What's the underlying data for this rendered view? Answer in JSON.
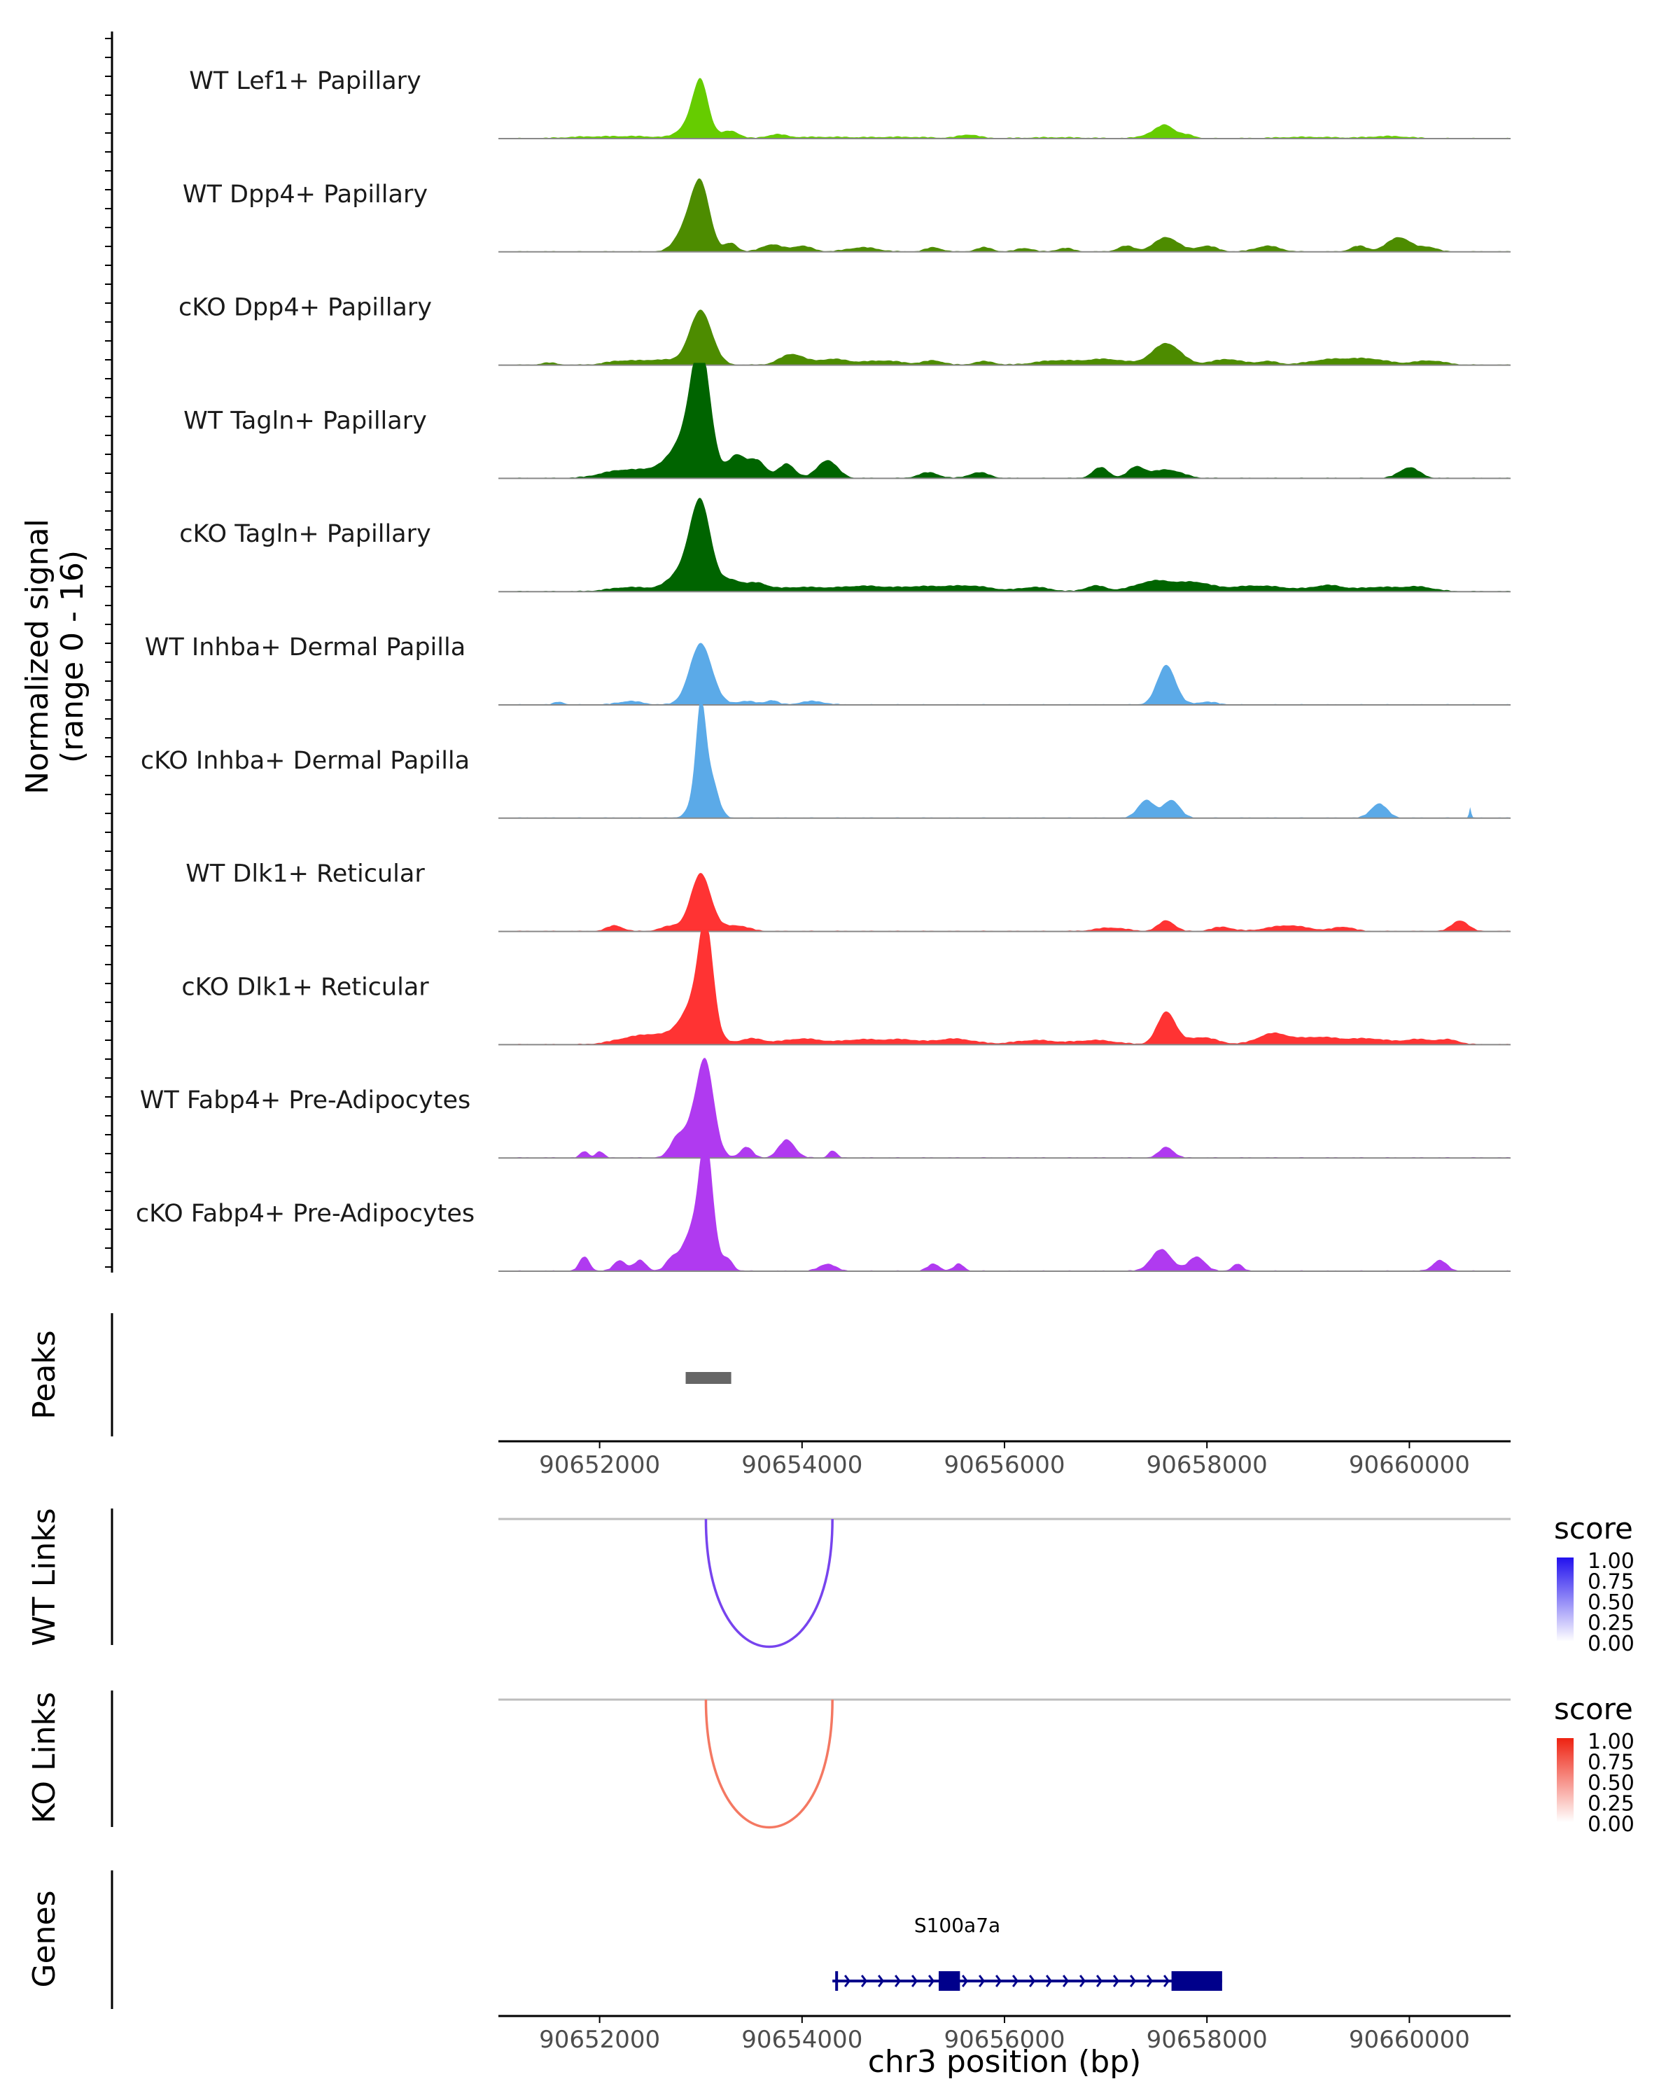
{
  "chart_data": {
    "type": "area",
    "title": "",
    "xlabel": "chr3 position (bp)",
    "ylabel_line1": "Normalized signal",
    "ylabel_line2": "(range 0 - 16)",
    "xlim": [
      90651000,
      90661000
    ],
    "ylim": [
      0,
      16
    ],
    "x_ticks": [
      90652000,
      90654000,
      90656000,
      90658000,
      90660000
    ],
    "x_tick_labels": [
      "90652000",
      "90654000",
      "90656000",
      "90658000",
      "90660000"
    ],
    "tracks": [
      {
        "name": "WT Lef1+ Papillary",
        "color": "#66CC00",
        "peaks": [
          [
            90651800,
            0.15,
            200
          ],
          [
            90652300,
            0.3,
            300
          ],
          [
            90653000,
            5.5,
            70
          ],
          [
            90652950,
            3.0,
            120
          ],
          [
            90653300,
            1.0,
            80
          ],
          [
            90653750,
            0.5,
            100
          ],
          [
            90654200,
            0.2,
            300
          ],
          [
            90655000,
            0.2,
            300
          ],
          [
            90655650,
            0.5,
            100
          ],
          [
            90656500,
            0.15,
            300
          ],
          [
            90657500,
            0.8,
            120
          ],
          [
            90657600,
            1.3,
            80
          ],
          [
            90657800,
            0.5,
            80
          ],
          [
            90659000,
            0.2,
            300
          ],
          [
            90659800,
            0.3,
            200
          ]
        ]
      },
      {
        "name": "WT Dpp4+ Papillary",
        "color": "#4D8C00",
        "peaks": [
          [
            90653000,
            9.0,
            90
          ],
          [
            90652850,
            3.0,
            100
          ],
          [
            90653300,
            1.2,
            60
          ],
          [
            90653700,
            1.0,
            100
          ],
          [
            90654000,
            0.8,
            100
          ],
          [
            90654600,
            0.6,
            150
          ],
          [
            90655300,
            0.6,
            80
          ],
          [
            90655800,
            0.6,
            80
          ],
          [
            90656200,
            0.5,
            80
          ],
          [
            90656600,
            0.5,
            80
          ],
          [
            90657200,
            0.8,
            80
          ],
          [
            90657600,
            2.0,
            120
          ],
          [
            90658000,
            0.8,
            100
          ],
          [
            90658600,
            0.8,
            120
          ],
          [
            90659500,
            0.8,
            80
          ],
          [
            90659900,
            2.0,
            120
          ],
          [
            90660200,
            0.6,
            80
          ]
        ]
      },
      {
        "name": "cKO Dpp4+ Papillary",
        "color": "#4D8C00",
        "peaks": [
          [
            90653000,
            7.5,
            110
          ],
          [
            90652600,
            0.7,
            200
          ],
          [
            90652200,
            0.5,
            150
          ],
          [
            90651500,
            0.3,
            80
          ],
          [
            90653900,
            1.5,
            120
          ],
          [
            90654300,
            0.8,
            150
          ],
          [
            90654800,
            0.6,
            200
          ],
          [
            90655300,
            0.6,
            100
          ],
          [
            90655800,
            0.5,
            100
          ],
          [
            90656500,
            0.6,
            200
          ],
          [
            90657000,
            0.8,
            200
          ],
          [
            90657600,
            3.0,
            140
          ],
          [
            90658200,
            0.8,
            150
          ],
          [
            90658600,
            0.5,
            100
          ],
          [
            90659200,
            0.7,
            200
          ],
          [
            90659600,
            0.8,
            200
          ],
          [
            90660200,
            0.6,
            150
          ]
        ]
      },
      {
        "name": "WT Tagln+ Papillary",
        "color": "#006400",
        "peaks": [
          [
            90653000,
            14.0,
            90
          ],
          [
            90652900,
            6.0,
            160
          ],
          [
            90653350,
            3.0,
            80
          ],
          [
            90653550,
            2.5,
            90
          ],
          [
            90653850,
            2.0,
            80
          ],
          [
            90654250,
            2.5,
            100
          ],
          [
            90652200,
            1.0,
            200
          ],
          [
            90652600,
            1.0,
            200
          ],
          [
            90655250,
            0.8,
            100
          ],
          [
            90655750,
            0.8,
            100
          ],
          [
            90656950,
            1.5,
            80
          ],
          [
            90657300,
            1.5,
            80
          ],
          [
            90657600,
            1.2,
            150
          ],
          [
            90660000,
            1.5,
            100
          ]
        ]
      },
      {
        "name": "cKO Tagln+ Papillary",
        "color": "#006400",
        "peaks": [
          [
            90653000,
            11.0,
            100
          ],
          [
            90652850,
            3.0,
            150
          ],
          [
            90653300,
            1.5,
            100
          ],
          [
            90653550,
            1.0,
            100
          ],
          [
            90652300,
            0.6,
            200
          ],
          [
            90654000,
            0.6,
            300
          ],
          [
            90654600,
            0.6,
            200
          ],
          [
            90655200,
            0.7,
            300
          ],
          [
            90655700,
            0.6,
            200
          ],
          [
            90656300,
            0.6,
            150
          ],
          [
            90656900,
            0.8,
            100
          ],
          [
            90657500,
            1.5,
            200
          ],
          [
            90657900,
            1.0,
            150
          ],
          [
            90658500,
            0.8,
            300
          ],
          [
            90659200,
            0.8,
            150
          ],
          [
            90659700,
            0.6,
            200
          ],
          [
            90660100,
            0.6,
            150
          ]
        ]
      },
      {
        "name": "WT Inhba+ Dermal Papilla",
        "color": "#5BAAE8",
        "peaks": [
          [
            90653000,
            8.5,
            110
          ],
          [
            90651600,
            0.4,
            50
          ],
          [
            90652300,
            0.5,
            120
          ],
          [
            90653450,
            0.5,
            100
          ],
          [
            90653700,
            0.6,
            60
          ],
          [
            90654100,
            0.5,
            120
          ],
          [
            90657600,
            5.5,
            90
          ],
          [
            90658000,
            0.4,
            100
          ]
        ]
      },
      {
        "name": "cKO Inhba+ Dermal Papilla",
        "color": "#5BAAE8",
        "peaks": [
          [
            90653000,
            11.0,
            45
          ],
          [
            90653100,
            5.0,
            70
          ],
          [
            90652980,
            4.0,
            80
          ],
          [
            90657400,
            2.5,
            80
          ],
          [
            90657650,
            2.5,
            80
          ],
          [
            90659700,
            2.0,
            80
          ],
          [
            90660600,
            1.5,
            10
          ]
        ]
      },
      {
        "name": "WT Dlk1+ Reticular",
        "color": "#FF3333",
        "peaks": [
          [
            90653000,
            8.0,
            100
          ],
          [
            90652150,
            0.8,
            80
          ],
          [
            90652700,
            0.7,
            100
          ],
          [
            90653350,
            0.8,
            120
          ],
          [
            90657050,
            0.5,
            150
          ],
          [
            90657600,
            1.5,
            80
          ],
          [
            90658150,
            0.6,
            100
          ],
          [
            90658800,
            0.8,
            200
          ],
          [
            90659350,
            0.6,
            100
          ],
          [
            90660500,
            1.5,
            80
          ]
        ]
      },
      {
        "name": "cKO Dlk1+ Reticular",
        "color": "#FF3333",
        "peaks": [
          [
            90653050,
            13.0,
            70
          ],
          [
            90652950,
            6.0,
            140
          ],
          [
            90652350,
            1.0,
            200
          ],
          [
            90652600,
            0.8,
            150
          ],
          [
            90653500,
            0.8,
            120
          ],
          [
            90654000,
            0.8,
            200
          ],
          [
            90654600,
            0.7,
            200
          ],
          [
            90655000,
            0.6,
            150
          ],
          [
            90655500,
            0.8,
            200
          ],
          [
            90656300,
            0.6,
            200
          ],
          [
            90656900,
            0.6,
            200
          ],
          [
            90657600,
            4.5,
            90
          ],
          [
            90657950,
            1.0,
            150
          ],
          [
            90658650,
            1.5,
            150
          ],
          [
            90659100,
            1.0,
            200
          ],
          [
            90659600,
            0.8,
            200
          ],
          [
            90660100,
            0.7,
            150
          ],
          [
            90660400,
            0.6,
            100
          ]
        ]
      },
      {
        "name": "WT Fabp4+ Pre-Adipocytes",
        "color": "#B03AF0",
        "peaks": [
          [
            90651850,
            0.9,
            40
          ],
          [
            90652000,
            0.9,
            40
          ],
          [
            90652750,
            1.5,
            60
          ],
          [
            90653050,
            10.0,
            80
          ],
          [
            90652950,
            5.0,
            130
          ],
          [
            90653450,
            1.5,
            60
          ],
          [
            90653850,
            2.5,
            80
          ],
          [
            90654300,
            1.0,
            40
          ],
          [
            90657600,
            1.5,
            70
          ]
        ]
      },
      {
        "name": "cKO Fabp4+ Pre-Adipocytes",
        "color": "#B03AF0",
        "peaks": [
          [
            90651850,
            2.0,
            50
          ],
          [
            90652200,
            1.5,
            60
          ],
          [
            90652400,
            1.5,
            60
          ],
          [
            90652700,
            1.0,
            50
          ],
          [
            90653050,
            13.0,
            60
          ],
          [
            90652980,
            7.0,
            140
          ],
          [
            90653280,
            1.0,
            40
          ],
          [
            90654250,
            1.0,
            80
          ],
          [
            90655300,
            1.0,
            60
          ],
          [
            90655550,
            1.0,
            50
          ],
          [
            90657550,
            3.0,
            100
          ],
          [
            90657900,
            2.0,
            80
          ],
          [
            90658300,
            1.0,
            50
          ],
          [
            90660300,
            1.5,
            70
          ]
        ]
      }
    ],
    "peaks_track": {
      "label": "Peaks",
      "regions": [
        [
          90652850,
          90653300
        ]
      ],
      "color": "#666666"
    },
    "links": [
      {
        "label": "WT Links",
        "start": 90653050,
        "end": 90654300,
        "score": 0.75,
        "legend_title": "score",
        "color": "#7744EE",
        "scale_high": "#2211EE"
      },
      {
        "label": "KO Links",
        "start": 90653050,
        "end": 90654300,
        "score": 0.6,
        "legend_title": "score",
        "color": "#F47862",
        "scale_high": "#EE2211"
      }
    ],
    "legend_ticks": [
      "1.00",
      "0.75",
      "0.50",
      "0.25",
      "0.00"
    ],
    "genes": {
      "label": "Genes",
      "color": "#00008B",
      "items": [
        {
          "name": "S100a7a",
          "start": 90654300,
          "end": 90658150,
          "strand": "+",
          "exons": [
            [
              90655350,
              90655560
            ],
            [
              90657650,
              90658150
            ]
          ]
        }
      ]
    }
  }
}
